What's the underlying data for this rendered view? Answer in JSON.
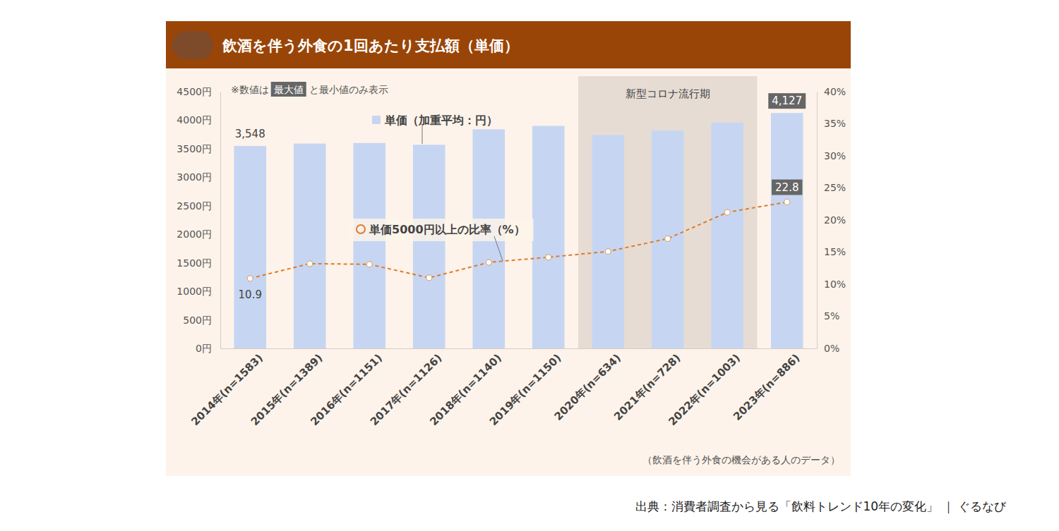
{
  "chart_data": {
    "type": "bar",
    "title": "飲酒を伴う外食の1回あたり支払額（単価）",
    "note": [
      "※数値は",
      "最大値",
      "と最小値のみ表示"
    ],
    "footnote": "（飲酒を伴う外食の機会がある人のデータ）",
    "source": "出典：消費者調査から見る「飲料トレンド10年の変化」 ｜ ぐるなび",
    "shaded_region": {
      "label": "新型コロナ流行期",
      "from": "2020年(n=634)",
      "to": "2022年(n=1003)"
    },
    "categories": [
      "2014年(n=1583)",
      "2015年(n=1389)",
      "2016年(n=1151)",
      "2017年(n=1126)",
      "2018年(n=1140)",
      "2019年(n=1150)",
      "2020年(n=634)",
      "2021年(n=728)",
      "2022年(n=1003)",
      "2023年(n=886)"
    ],
    "series": [
      {
        "name": "単価（加重平均：円）",
        "type": "bar",
        "color": "#c6d6f2",
        "values": [
          3548,
          3590,
          3600,
          3570,
          3840,
          3900,
          3740,
          3820,
          3960,
          4127
        ],
        "value_labels": [
          "3,548",
          null,
          null,
          null,
          null,
          null,
          null,
          null,
          null,
          "4,127"
        ]
      },
      {
        "name": "単価5000円以上の比率（%）",
        "type": "line",
        "axis": "y2",
        "color": "#e07b2a",
        "marker": "circle",
        "line_style": "dashed",
        "values": [
          10.9,
          13.2,
          13.1,
          11.0,
          13.4,
          14.2,
          15.1,
          17.1,
          21.2,
          22.8
        ],
        "value_labels": [
          "10.9",
          null,
          null,
          null,
          null,
          null,
          null,
          null,
          null,
          "22.8"
        ]
      }
    ],
    "ylim": [
      0,
      4500
    ],
    "yticks": [
      {
        "value": 0,
        "label": "0円"
      },
      {
        "value": 500,
        "label": "500円"
      },
      {
        "value": 1000,
        "label": "1000円"
      },
      {
        "value": 1500,
        "label": "1500円"
      },
      {
        "value": 2000,
        "label": "2000円"
      },
      {
        "value": 2500,
        "label": "2500円"
      },
      {
        "value": 3000,
        "label": "3000円"
      },
      {
        "value": 3500,
        "label": "3500円"
      },
      {
        "value": 4000,
        "label": "4000円"
      },
      {
        "value": 4500,
        "label": "4500円"
      }
    ],
    "y2lim": [
      0,
      40
    ],
    "y2ticks": [
      {
        "value": 0,
        "label": "0%"
      },
      {
        "value": 5,
        "label": "5%"
      },
      {
        "value": 10,
        "label": "10%"
      },
      {
        "value": 15,
        "label": "15%"
      },
      {
        "value": 20,
        "label": "20%"
      },
      {
        "value": 25,
        "label": "25%"
      },
      {
        "value": 30,
        "label": "30%"
      },
      {
        "value": 35,
        "label": "35%"
      },
      {
        "value": 40,
        "label": "40%"
      }
    ],
    "data_labels": true,
    "grid": false
  }
}
